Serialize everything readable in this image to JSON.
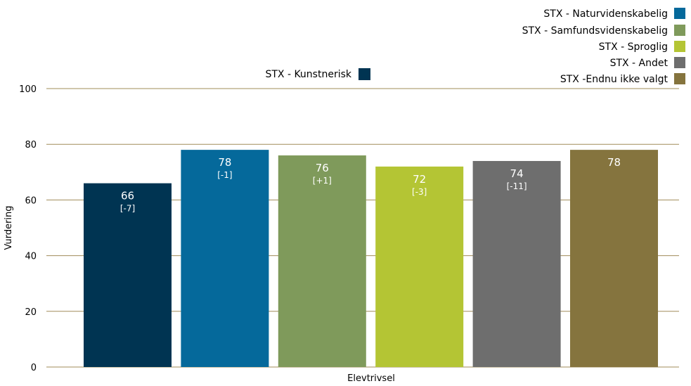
{
  "chart_data": {
    "type": "bar",
    "title": "",
    "xlabel": "Elevtrivsel",
    "ylabel": "Vurdering",
    "categories": [
      "Elevtrivsel"
    ],
    "ylim": [
      0,
      100
    ],
    "yticks": [
      0,
      20,
      40,
      60,
      80,
      100
    ],
    "grid": true,
    "legend_placement": "top-right",
    "series": [
      {
        "name": "STX - Kunstnerisk",
        "value": 66,
        "annotation": "[-7]",
        "color": "#003452"
      },
      {
        "name": "STX - Naturvidenskabelig",
        "value": 78,
        "annotation": "[-1]",
        "color": "#05699b"
      },
      {
        "name": "STX - Samfundsvidenskabelig",
        "value": 76,
        "annotation": "[+1]",
        "color": "#7f9a5b"
      },
      {
        "name": "STX - Sproglig",
        "value": 72,
        "annotation": "[-3]",
        "color": "#b4c534"
      },
      {
        "name": "STX - Andet",
        "value": 74,
        "annotation": "[-11]",
        "color": "#6e6e6e"
      },
      {
        "name": "STX -Endnu ikke valgt",
        "value": 78,
        "annotation": "",
        "color": "#85743e"
      }
    ]
  }
}
